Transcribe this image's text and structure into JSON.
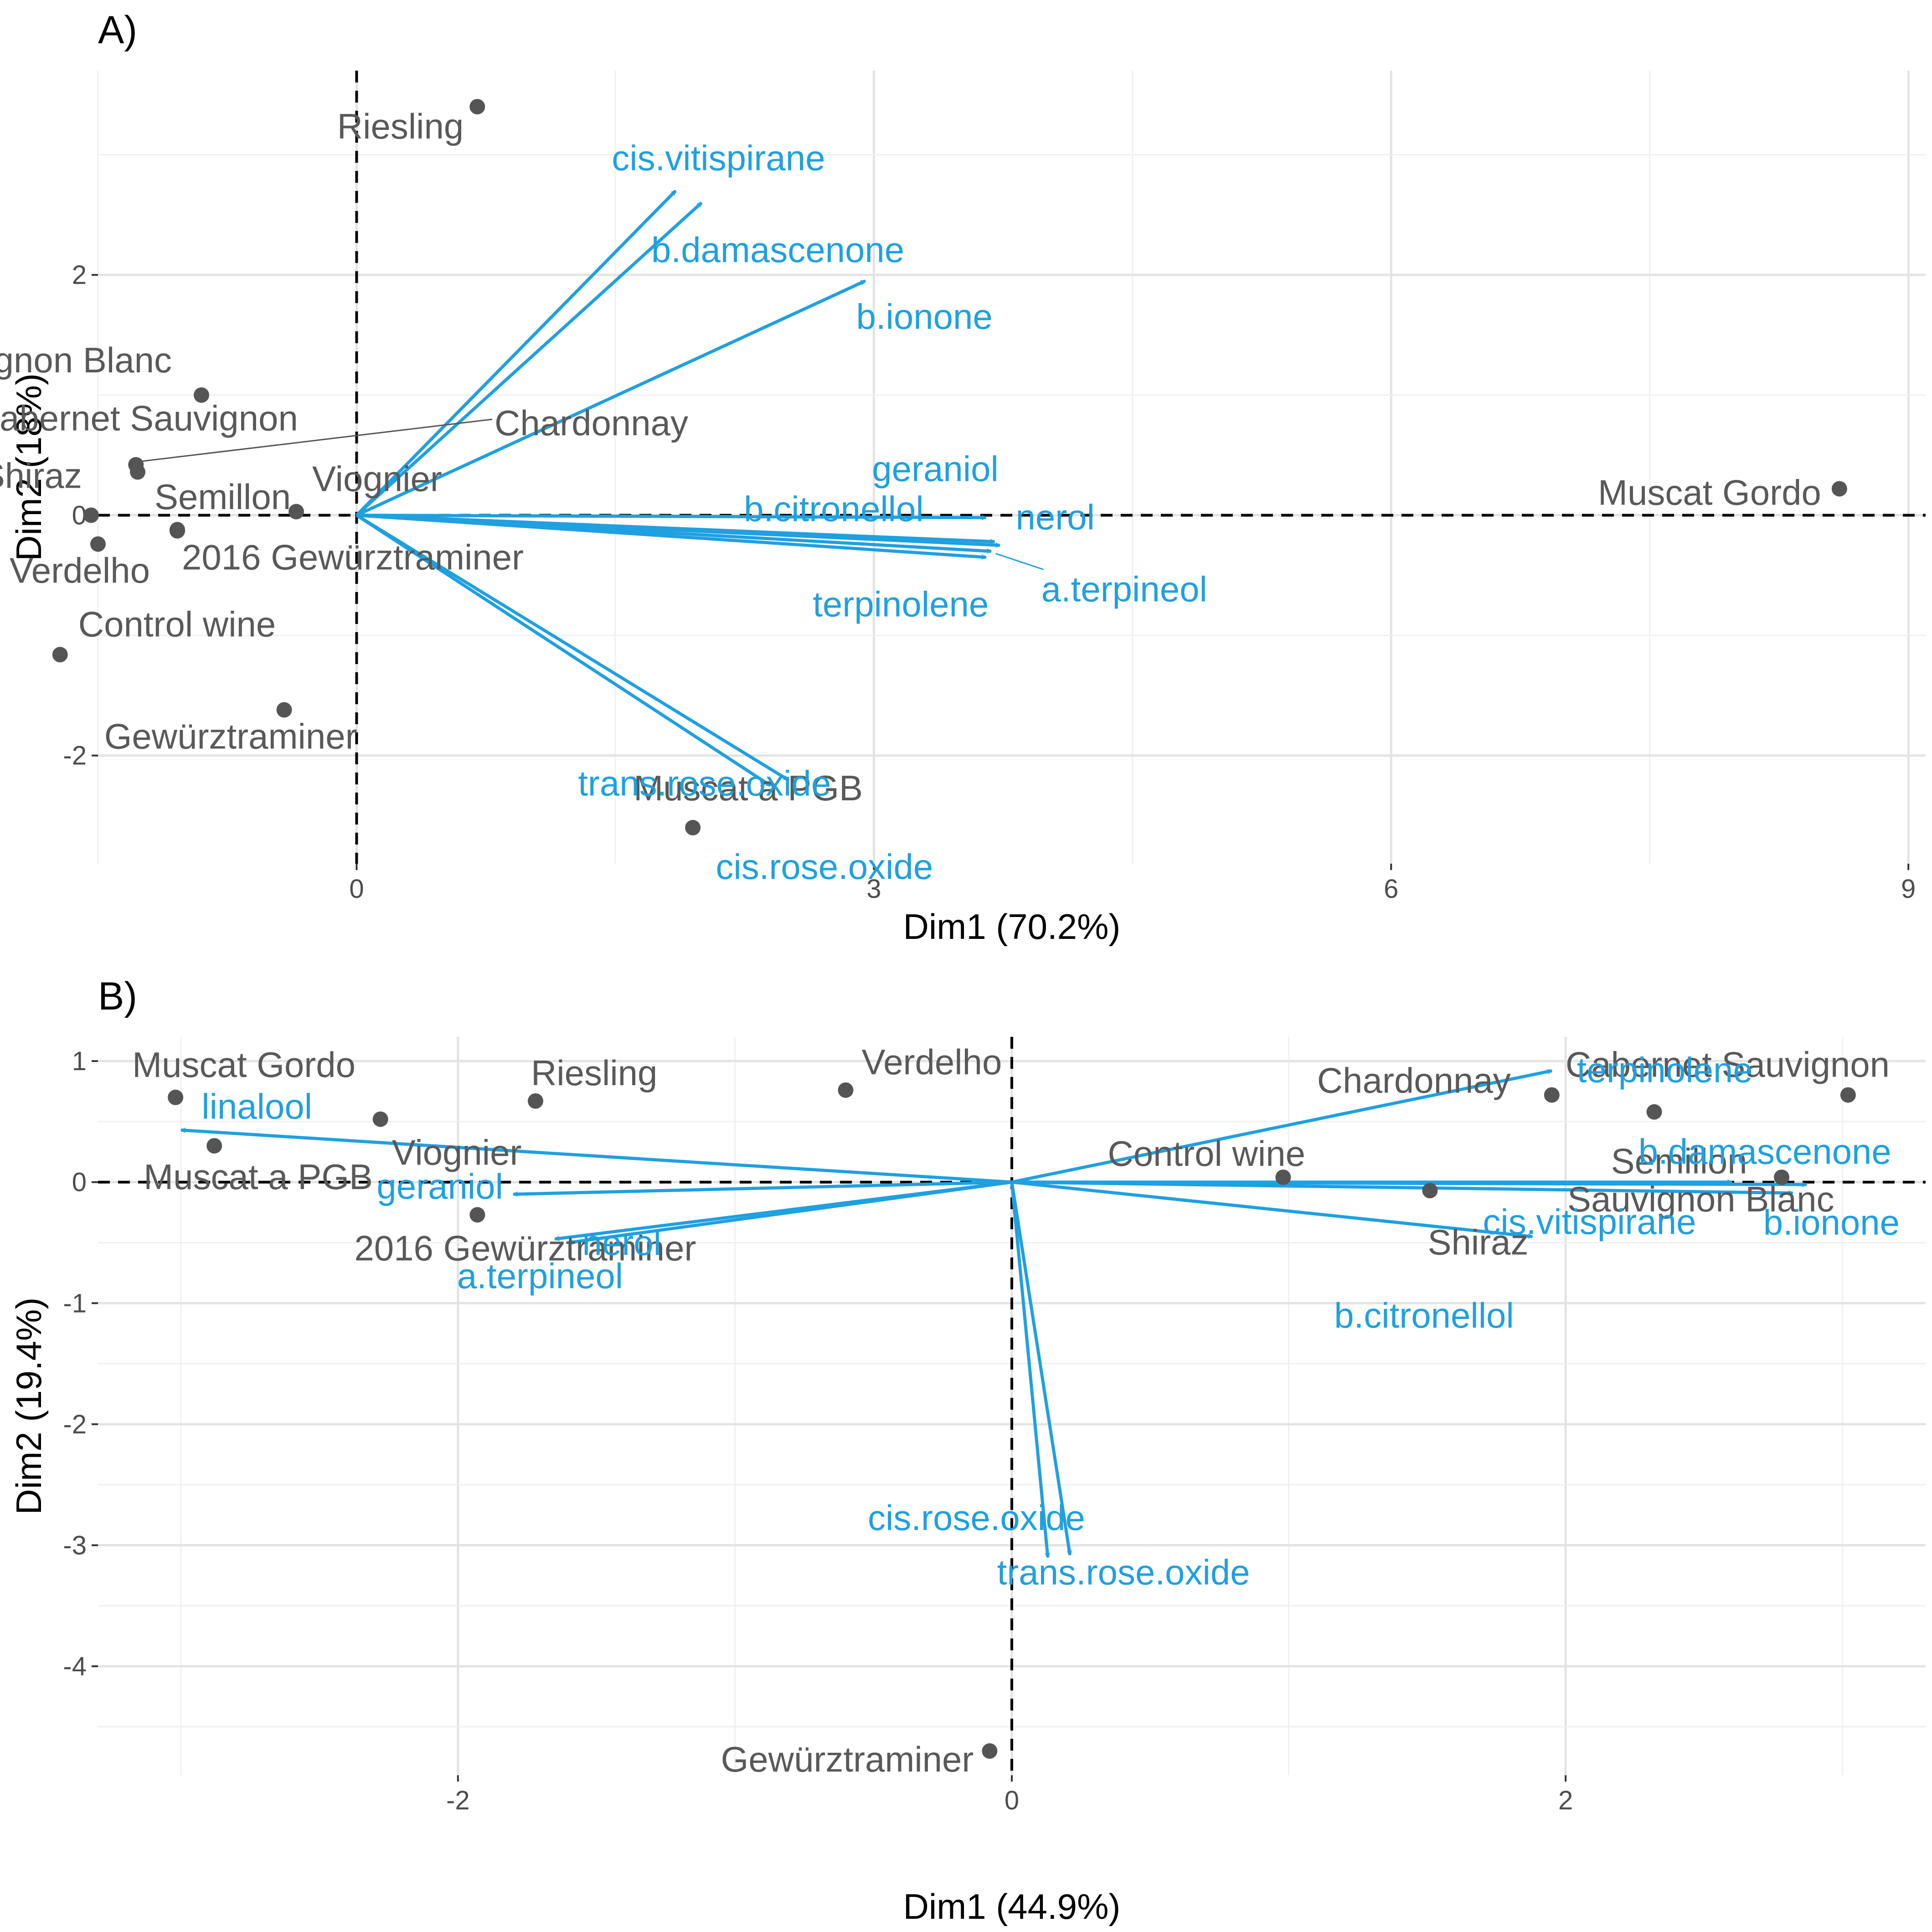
{
  "colors": {
    "variables": "#1fa0e0",
    "points": "#555555",
    "zero_lines": "#000000",
    "leader": "#555555"
  },
  "chart_data": [
    {
      "panel": "A)",
      "type": "scatter",
      "subtype": "PCA biplot",
      "xlabel": "Dim1 (70.2%)",
      "ylabel": "Dim2 (18%)",
      "xlim": [
        -1.5,
        9.1
      ],
      "ylim": [
        -2.9,
        3.7
      ],
      "xticks": [
        0,
        3,
        6,
        9
      ],
      "xtick_labels": [
        "0",
        "3",
        "6",
        "9"
      ],
      "yticks": [
        -2,
        0,
        2
      ],
      "ytick_labels": [
        "-2",
        "0",
        "2"
      ],
      "points": [
        {
          "name": "Riesling",
          "x": 0.7,
          "y": 3.4,
          "label": "Riesling"
        },
        {
          "name": "Sauvignon Blanc",
          "x": -0.9,
          "y": 1.0,
          "label": "Sauvignon Blanc"
        },
        {
          "name": "Cabernet Sauvignon",
          "x": -1.28,
          "y": 0.42,
          "label": "Cabernet Sauvignon"
        },
        {
          "name": "Chardonnay",
          "x": -1.27,
          "y": 0.36,
          "label": "Chardonnay"
        },
        {
          "name": "Shiraz",
          "x": -1.54,
          "y": 0.0,
          "label": "Shiraz"
        },
        {
          "name": "Viognier",
          "x": -0.35,
          "y": 0.03,
          "label": "Viognier"
        },
        {
          "name": "Semillon",
          "x": -1.04,
          "y": -0.12,
          "label": "Semillon"
        },
        {
          "name": "2016 Gewürztraminer",
          "x": -1.04,
          "y": -0.13,
          "label": "2016 Gewürztraminer"
        },
        {
          "name": "Verdelho",
          "x": -1.5,
          "y": -0.24,
          "label": "Verdelho"
        },
        {
          "name": "Control wine",
          "x": -1.72,
          "y": -1.16,
          "label": "Control wine"
        },
        {
          "name": "Gewürztraminer",
          "x": -0.42,
          "y": -1.62,
          "label": "Gewürztraminer"
        },
        {
          "name": "Muscat a PGB",
          "x": 1.95,
          "y": -2.6,
          "label": "Muscat a PGB"
        },
        {
          "name": "Muscat Gordo",
          "x": 8.6,
          "y": 0.22,
          "label": "Muscat Gordo"
        }
      ],
      "variables": [
        {
          "name": "cis.vitispirane",
          "x": 1.85,
          "y": 2.7,
          "label": "cis.vitispirane"
        },
        {
          "name": "b.damascenone",
          "x": 2.0,
          "y": 2.6,
          "label": "b.damascenone"
        },
        {
          "name": "b.ionone",
          "x": 2.95,
          "y": 1.95,
          "label": "b.ionone"
        },
        {
          "name": "geraniol",
          "x": 3.65,
          "y": -0.02,
          "label": "geraniol"
        },
        {
          "name": "b.citronellol",
          "x": 3.7,
          "y": -0.22,
          "label": "b.citronellol"
        },
        {
          "name": "nerol",
          "x": 3.73,
          "y": -0.25,
          "label": "nerol"
        },
        {
          "name": "a.terpineol",
          "x": 3.68,
          "y": -0.3,
          "label": "a.terpineol"
        },
        {
          "name": "terpinolene",
          "x": 3.65,
          "y": -0.35,
          "label": "terpinolene"
        },
        {
          "name": "trans.rose.oxide",
          "x": 2.5,
          "y": -2.2,
          "label": "trans.rose.oxide"
        },
        {
          "name": "cis.rose.oxide",
          "x": 2.4,
          "y": -2.25,
          "label": "cis.rose.oxide"
        }
      ]
    },
    {
      "panel": "B)",
      "type": "scatter",
      "subtype": "PCA biplot",
      "xlabel": "Dim1 (44.9%)",
      "ylabel": "Dim2 (19.4%)",
      "xlim": [
        -3.3,
        3.3
      ],
      "ylim": [
        -4.9,
        1.2
      ],
      "xticks": [
        -2,
        0,
        2
      ],
      "xtick_labels": [
        "-2",
        "0",
        "2"
      ],
      "yticks": [
        -4,
        -3,
        -2,
        -1,
        0,
        1
      ],
      "ytick_labels": [
        "-4",
        "-3",
        "-2",
        "-1",
        "0",
        "1"
      ],
      "points": [
        {
          "name": "Muscat Gordo",
          "x": -3.02,
          "y": 0.7,
          "label": "Muscat Gordo"
        },
        {
          "name": "Muscat a PGB",
          "x": -2.88,
          "y": 0.3,
          "label": "Muscat a PGB"
        },
        {
          "name": "Viognier",
          "x": -2.28,
          "y": 0.52,
          "label": "Viognier"
        },
        {
          "name": "Riesling",
          "x": -1.72,
          "y": 0.67,
          "label": "Riesling"
        },
        {
          "name": "Verdelho",
          "x": -0.6,
          "y": 0.76,
          "label": "Verdelho"
        },
        {
          "name": "2016 Gewürztraminer",
          "x": -1.93,
          "y": -0.27,
          "label": "2016 Gewürztraminer"
        },
        {
          "name": "Control wine",
          "x": 0.98,
          "y": 0.04,
          "label": "Control wine"
        },
        {
          "name": "Chardonnay",
          "x": 1.95,
          "y": 0.72,
          "label": "Chardonnay"
        },
        {
          "name": "Semillon",
          "x": 2.32,
          "y": 0.58,
          "label": "Semillon"
        },
        {
          "name": "Cabernet Sauvignon",
          "x": 3.02,
          "y": 0.72,
          "label": "Cabernet Sauvignon"
        },
        {
          "name": "Shiraz",
          "x": 1.51,
          "y": -0.07,
          "label": "Shiraz"
        },
        {
          "name": "Sauvignon Blanc",
          "x": 2.78,
          "y": 0.04,
          "label": "Sauvignon Blanc"
        },
        {
          "name": "Gewürztraminer",
          "x": -0.08,
          "y": -4.7,
          "label": "Gewürztraminer"
        }
      ],
      "variables": [
        {
          "name": "linalool",
          "x": -3.0,
          "y": 0.43,
          "label": "linalool"
        },
        {
          "name": "geraniol",
          "x": -1.8,
          "y": -0.1,
          "label": "geraniol"
        },
        {
          "name": "nerol",
          "x": -1.65,
          "y": -0.47,
          "label": "nerol"
        },
        {
          "name": "a.terpineol",
          "x": -1.6,
          "y": -0.5,
          "label": "a.terpineol"
        },
        {
          "name": "terpinolene",
          "x": 1.95,
          "y": 0.92,
          "label": "terpinolene"
        },
        {
          "name": "b.damascenone",
          "x": 2.6,
          "y": 0.0,
          "label": "b.damascenone"
        },
        {
          "name": "b.ionone",
          "x": 2.87,
          "y": -0.02,
          "label": "b.ionone"
        },
        {
          "name": "cis.vitispirane",
          "x": 2.82,
          "y": -0.09,
          "label": "cis.vitispirane"
        },
        {
          "name": "b.citronellol",
          "x": 1.88,
          "y": -0.45,
          "label": "b.citronellol"
        },
        {
          "name": "cis.rose.oxide",
          "x": 0.13,
          "y": -3.1,
          "label": "cis.rose.oxide"
        },
        {
          "name": "trans.rose.oxide",
          "x": 0.21,
          "y": -3.08,
          "label": "trans.rose.oxide"
        }
      ]
    }
  ]
}
